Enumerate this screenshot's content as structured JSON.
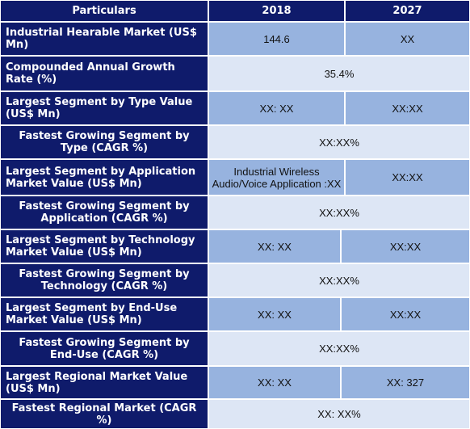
{
  "header": {
    "col0": "Particulars",
    "col1": "2018",
    "col2": "2027"
  },
  "rows": [
    {
      "label": "Industrial Hearable  Market (US$ Mn)",
      "v2018": "144.6",
      "v2027": "XX"
    },
    {
      "label": "Compounded Annual Growth Rate (%)",
      "merged": "35.4%"
    },
    {
      "label": "Largest Segment by Type Value (US$ Mn)",
      "v2018": "XX: XX",
      "v2027": "XX:XX"
    },
    {
      "label": "Fastest Growing Segment by Type (CAGR %)",
      "merged": "XX:XX%"
    },
    {
      "label": "Largest Segment by Application Market Value (US$ Mn)",
      "v2018": "Industrial Wireless Audio/Voice Application :XX",
      "v2027": "XX:XX"
    },
    {
      "label": "Fastest Growing Segment by Application (CAGR %)",
      "merged": "XX:XX%"
    },
    {
      "label": "Largest Segment by Technology Market Value (US$ Mn)",
      "v2018": "XX: XX",
      "v2027": "XX:XX"
    },
    {
      "label": "Fastest Growing Segment by Technology (CAGR %)",
      "merged": "XX:XX%"
    },
    {
      "label": "Largest Segment by End-Use Market Value (US$ Mn)",
      "v2018": "XX: XX",
      "v2027": "XX:XX"
    },
    {
      "label": "Fastest Growing Segment by End-Use (CAGR %)",
      "merged": "XX:XX%"
    },
    {
      "label": "Largest Regional Market Value (US$ Mn)",
      "v2018": "XX: XX",
      "v2027": "XX: 327"
    },
    {
      "label": "Fastest Regional Market (CAGR %)",
      "merged": "XX: XX%"
    }
  ]
}
